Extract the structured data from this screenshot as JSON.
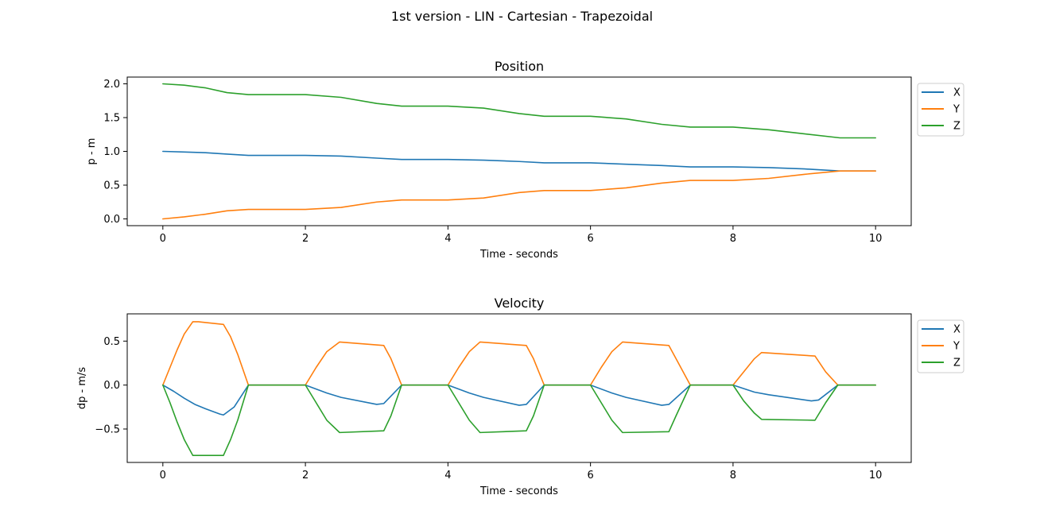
{
  "figure": {
    "title": "1st version - LIN - Cartesian - Trapezoidal"
  },
  "colors": {
    "X": "#1f77b4",
    "Y": "#ff7f0e",
    "Z": "#2ca02c",
    "axes": "#000000",
    "background": "#ffffff"
  },
  "chart_data": [
    {
      "type": "line",
      "title": "Position",
      "xlabel": "Time - seconds",
      "ylabel": "p - m",
      "xlim": [
        -0.5,
        10.5
      ],
      "ylim": [
        -0.1,
        2.1
      ],
      "xticks": [
        0,
        2,
        4,
        6,
        8,
        10
      ],
      "yticks": [
        0.0,
        0.5,
        1.0,
        1.5,
        2.0
      ],
      "xtick_labels": [
        "0",
        "2",
        "4",
        "6",
        "8",
        "10"
      ],
      "ytick_labels": [
        "0.0",
        "0.5",
        "1.0",
        "1.5",
        "2.0"
      ],
      "grid": false,
      "legend": "outside-top-right",
      "series": [
        {
          "name": "X",
          "x": [
            0,
            0.3,
            0.6,
            0.9,
            1.2,
            2.0,
            2.5,
            3.0,
            3.35,
            4.0,
            4.5,
            5.0,
            5.35,
            6.0,
            6.5,
            7.0,
            7.4,
            8.0,
            8.5,
            9.0,
            9.5,
            10.0
          ],
          "y": [
            1.0,
            0.99,
            0.98,
            0.96,
            0.94,
            0.94,
            0.93,
            0.9,
            0.88,
            0.88,
            0.87,
            0.85,
            0.83,
            0.83,
            0.81,
            0.79,
            0.77,
            0.77,
            0.76,
            0.74,
            0.71,
            0.71
          ]
        },
        {
          "name": "Y",
          "x": [
            0,
            0.3,
            0.6,
            0.9,
            1.2,
            2.0,
            2.5,
            3.0,
            3.35,
            4.0,
            4.5,
            5.0,
            5.35,
            6.0,
            6.5,
            7.0,
            7.4,
            8.0,
            8.5,
            9.0,
            9.5,
            10.0
          ],
          "y": [
            0.0,
            0.03,
            0.07,
            0.12,
            0.14,
            0.14,
            0.17,
            0.25,
            0.28,
            0.28,
            0.31,
            0.39,
            0.42,
            0.42,
            0.46,
            0.53,
            0.57,
            0.57,
            0.6,
            0.66,
            0.71,
            0.71
          ]
        },
        {
          "name": "Z",
          "x": [
            0,
            0.3,
            0.6,
            0.9,
            1.2,
            2.0,
            2.5,
            3.0,
            3.35,
            4.0,
            4.5,
            5.0,
            5.35,
            6.0,
            6.5,
            7.0,
            7.4,
            8.0,
            8.5,
            9.0,
            9.5,
            10.0
          ],
          "y": [
            2.0,
            1.98,
            1.94,
            1.87,
            1.84,
            1.84,
            1.8,
            1.71,
            1.67,
            1.67,
            1.64,
            1.56,
            1.52,
            1.52,
            1.48,
            1.4,
            1.36,
            1.36,
            1.32,
            1.26,
            1.2,
            1.2
          ]
        }
      ]
    },
    {
      "type": "line",
      "title": "Velocity",
      "xlabel": "Time - seconds",
      "ylabel": "dp - m/s",
      "xlim": [
        -0.5,
        10.5
      ],
      "ylim": [
        -0.88,
        0.81
      ],
      "xticks": [
        0,
        2,
        4,
        6,
        8,
        10
      ],
      "yticks": [
        -0.5,
        0.0,
        0.5
      ],
      "xtick_labels": [
        "0",
        "2",
        "4",
        "6",
        "8",
        "10"
      ],
      "ytick_labels": [
        "−0.5",
        "0.0",
        "0.5"
      ],
      "grid": false,
      "legend": "outside-top-right",
      "series": [
        {
          "name": "X",
          "x": [
            0,
            0.15,
            0.3,
            0.45,
            0.6,
            0.8,
            0.85,
            1.0,
            1.2,
            2.0,
            2.3,
            2.5,
            3.0,
            3.1,
            3.35,
            4.0,
            4.3,
            4.5,
            5.0,
            5.1,
            5.35,
            6.0,
            6.3,
            6.5,
            7.0,
            7.1,
            7.4,
            8.0,
            8.3,
            8.5,
            9.1,
            9.2,
            9.47,
            10.0
          ],
          "y": [
            0.0,
            -0.07,
            -0.15,
            -0.22,
            -0.27,
            -0.33,
            -0.34,
            -0.25,
            0.0,
            0.0,
            -0.09,
            -0.14,
            -0.22,
            -0.21,
            0.0,
            0.0,
            -0.09,
            -0.14,
            -0.23,
            -0.22,
            0.0,
            0.0,
            -0.09,
            -0.14,
            -0.23,
            -0.22,
            0.0,
            0.0,
            -0.08,
            -0.11,
            -0.18,
            -0.17,
            0.0,
            0.0
          ]
        },
        {
          "name": "Y",
          "x": [
            0,
            0.1,
            0.2,
            0.3,
            0.42,
            0.5,
            0.85,
            0.95,
            1.05,
            1.2,
            2.0,
            2.15,
            2.3,
            2.48,
            3.1,
            3.2,
            3.35,
            4.0,
            4.15,
            4.3,
            4.45,
            5.1,
            5.2,
            5.35,
            6.0,
            6.15,
            6.3,
            6.45,
            7.1,
            7.2,
            7.4,
            8.0,
            8.15,
            8.3,
            8.4,
            9.15,
            9.3,
            9.47,
            10.0
          ],
          "y": [
            0.0,
            0.2,
            0.4,
            0.58,
            0.72,
            0.72,
            0.69,
            0.55,
            0.35,
            0.0,
            0.0,
            0.2,
            0.38,
            0.49,
            0.45,
            0.3,
            0.0,
            0.0,
            0.2,
            0.38,
            0.49,
            0.45,
            0.3,
            0.0,
            0.0,
            0.2,
            0.38,
            0.49,
            0.45,
            0.3,
            0.0,
            0.0,
            0.15,
            0.3,
            0.37,
            0.33,
            0.15,
            0.0,
            0.0
          ]
        },
        {
          "name": "Z",
          "x": [
            0,
            0.1,
            0.2,
            0.3,
            0.42,
            0.85,
            0.95,
            1.05,
            1.2,
            2.0,
            2.15,
            2.3,
            2.48,
            3.1,
            3.2,
            3.35,
            4.0,
            4.15,
            4.3,
            4.45,
            5.1,
            5.2,
            5.35,
            6.0,
            6.15,
            6.3,
            6.45,
            7.1,
            7.2,
            7.4,
            8.0,
            8.15,
            8.3,
            8.4,
            9.15,
            9.3,
            9.47,
            10.0
          ],
          "y": [
            0.0,
            -0.2,
            -0.42,
            -0.62,
            -0.8,
            -0.8,
            -0.62,
            -0.4,
            0.0,
            0.0,
            -0.2,
            -0.4,
            -0.54,
            -0.52,
            -0.35,
            0.0,
            0.0,
            -0.2,
            -0.4,
            -0.54,
            -0.52,
            -0.35,
            0.0,
            0.0,
            -0.2,
            -0.4,
            -0.54,
            -0.53,
            -0.35,
            0.0,
            0.0,
            -0.18,
            -0.32,
            -0.39,
            -0.4,
            -0.2,
            0.0,
            0.0
          ]
        }
      ]
    }
  ]
}
